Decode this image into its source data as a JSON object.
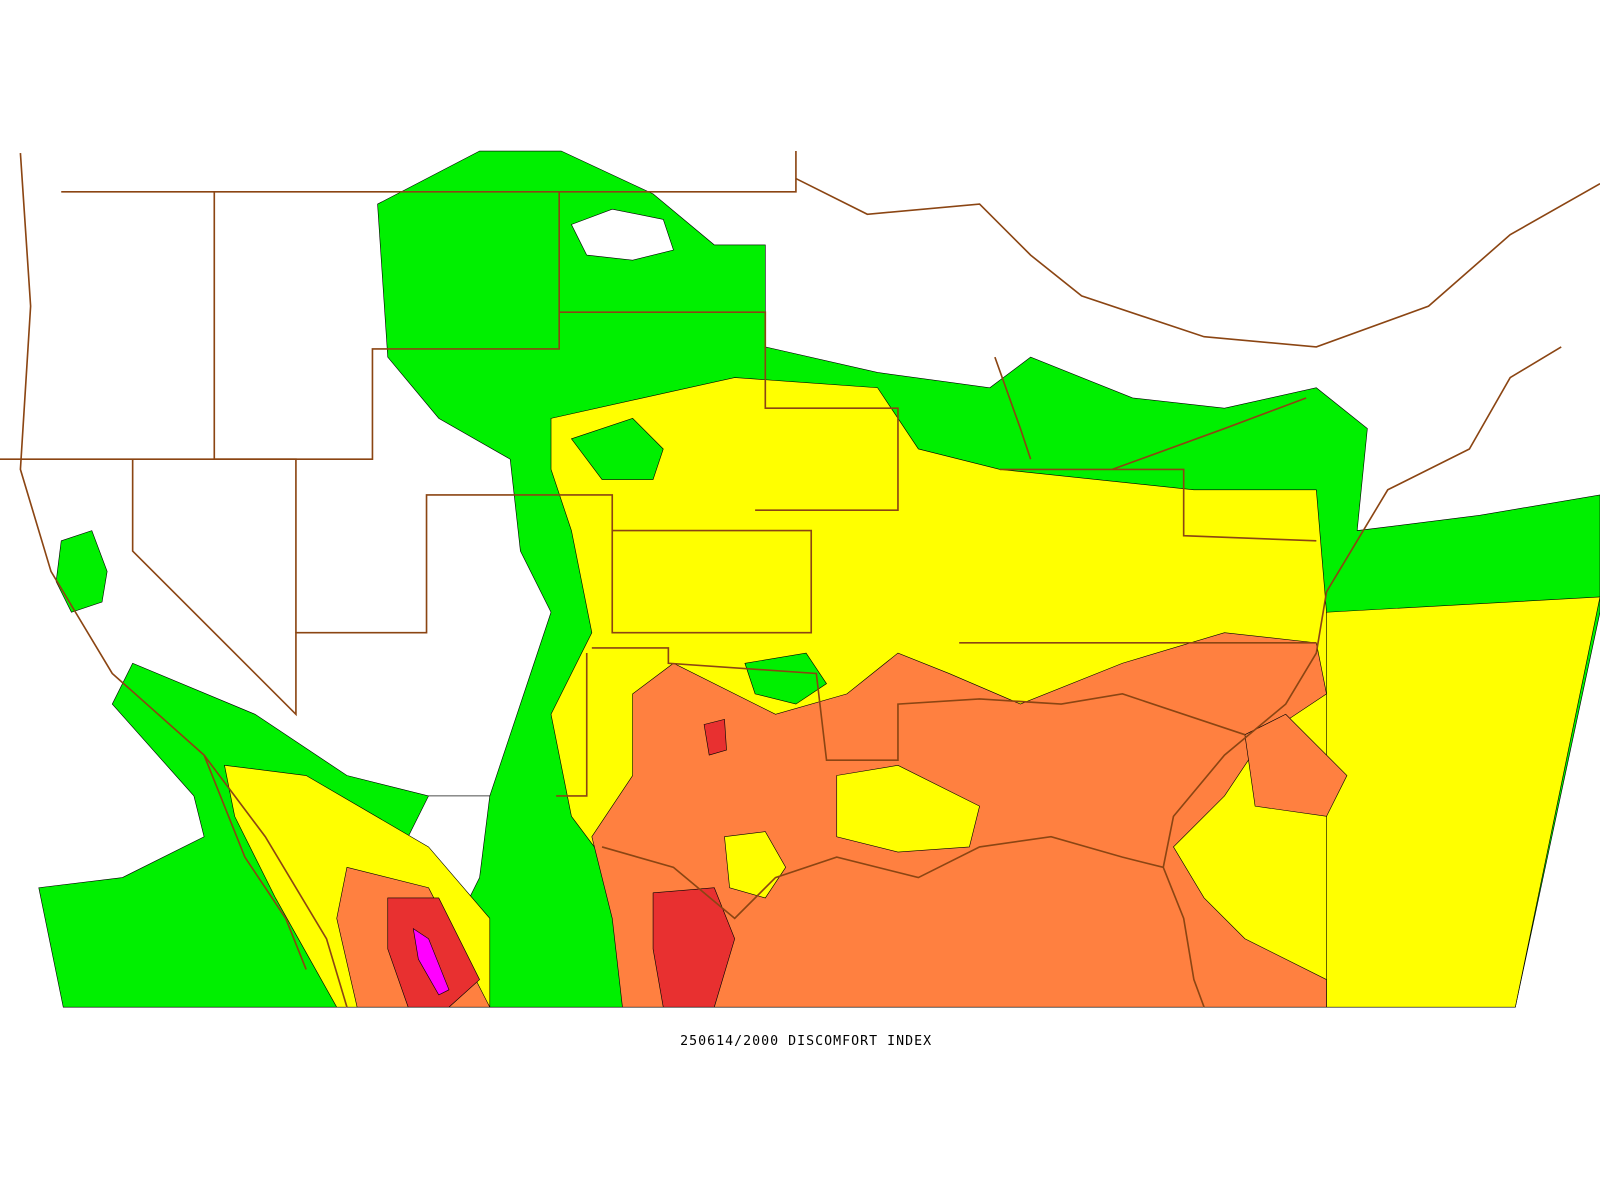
{
  "caption": "250614/2000 DISCOMFORT INDEX"
}
